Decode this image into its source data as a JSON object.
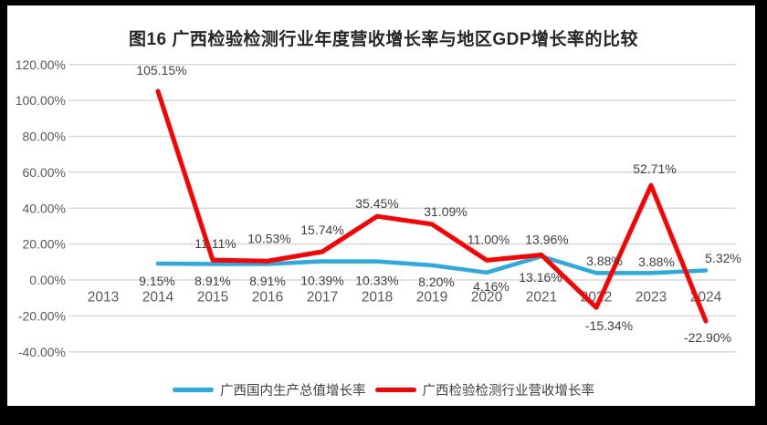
{
  "figure": {
    "title": "图16 广西检验检测行业年度营收增长率与地区GDP增长率的比较"
  },
  "colors": {
    "page_background": "#000000",
    "canvas_background": "#FFFFFF",
    "gdp_line": "#29ABE2",
    "revenue_line": "#FF0000",
    "gridline": "#D9D9D9",
    "axis_text": "#595959",
    "data_label_text": "#404040",
    "title_text": "#262626"
  },
  "chart_data": {
    "type": "line",
    "title": "图16 广西检验检测行业年度营收增长率与地区GDP增长率的比较",
    "categories": [
      "2013",
      "2014",
      "2015",
      "2016",
      "2017",
      "2018",
      "2019",
      "2020",
      "2021",
      "2022",
      "2023",
      "2024"
    ],
    "series": [
      {
        "name": "广西国内生产总值增长率",
        "color": "#29ABE2",
        "values": [
          null,
          9.15,
          8.91,
          8.91,
          10.39,
          10.33,
          8.2,
          4.16,
          13.16,
          3.88,
          3.88,
          5.32
        ],
        "labels": [
          "",
          "9.15%",
          "8.91%",
          "8.91%",
          "10.39%",
          "10.33%",
          "8.20%",
          "4.16%",
          "13.16%",
          "3.88%",
          "3.88%",
          "5.32%"
        ]
      },
      {
        "name": "广西检验检测行业营收增长率",
        "color": "#FF0000",
        "values": [
          null,
          105.15,
          11.11,
          10.53,
          15.74,
          35.45,
          31.09,
          11.0,
          13.96,
          -15.34,
          52.71,
          -22.9
        ],
        "labels": [
          "",
          "105.15%",
          "11.11%",
          "10.53%",
          "15.74%",
          "35.45%",
          "31.09%",
          "11.00%",
          "13.96%",
          "-15.34%",
          "52.71%",
          "-22.90%"
        ]
      }
    ],
    "y_axis": {
      "tick_labels": [
        "120.00%",
        "100.00%",
        "80.00%",
        "60.00%",
        "40.00%",
        "20.00%",
        "0.00%",
        "-20.00%",
        "-40.00%"
      ],
      "tick_values": [
        120,
        100,
        80,
        60,
        40,
        20,
        0,
        -20,
        -40
      ],
      "min": -40,
      "max": 120
    },
    "grid": true,
    "legend_position": "bottom"
  },
  "legend": {
    "items": [
      {
        "label": "广西国内生产总值增长率",
        "color": "#29ABE2"
      },
      {
        "label": "广西检验检测行业营收增长率",
        "color": "#FF0000"
      }
    ]
  }
}
